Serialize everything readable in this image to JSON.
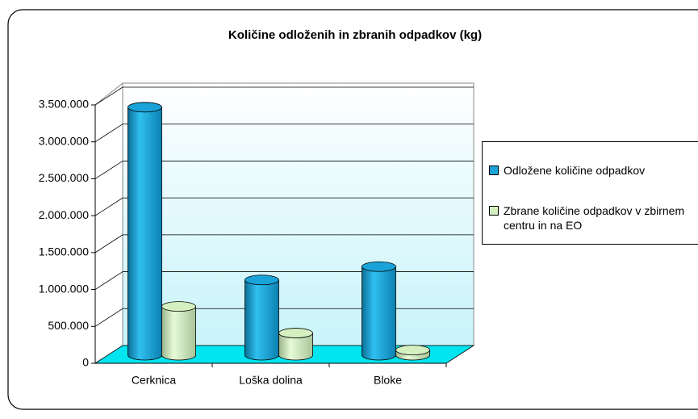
{
  "chart_data": {
    "type": "bar3d",
    "title": "Količine odloženih in zbranih odpadkov (kg)",
    "categories": [
      "Cerknica",
      "Loška dolina",
      "Bloke"
    ],
    "series": [
      {
        "name": "Odložene količine odpadkov",
        "color": "#1aa3d9",
        "values": [
          3360000,
          1020000,
          1200000
        ]
      },
      {
        "name": "Zbrane količine odpadkov v zbirnem centru in na EO",
        "color": "#d4f0c0",
        "values": [
          660000,
          300000,
          70000
        ]
      }
    ],
    "ylim": [
      0,
      3500000
    ],
    "yticks": [
      0,
      {
        "value": 500000,
        "label": "500.000"
      },
      {
        "value": 1000000,
        "label": "1.000.000"
      },
      {
        "value": 1500000,
        "label": "1.500.000"
      },
      {
        "value": 2000000,
        "label": "2.000.000"
      },
      {
        "value": 2500000,
        "label": "2.500.000"
      },
      {
        "value": 3000000,
        "label": "3.000.000"
      },
      {
        "value": 3500000,
        "label": "3.500.000"
      }
    ],
    "grid": true,
    "legend": "right"
  }
}
